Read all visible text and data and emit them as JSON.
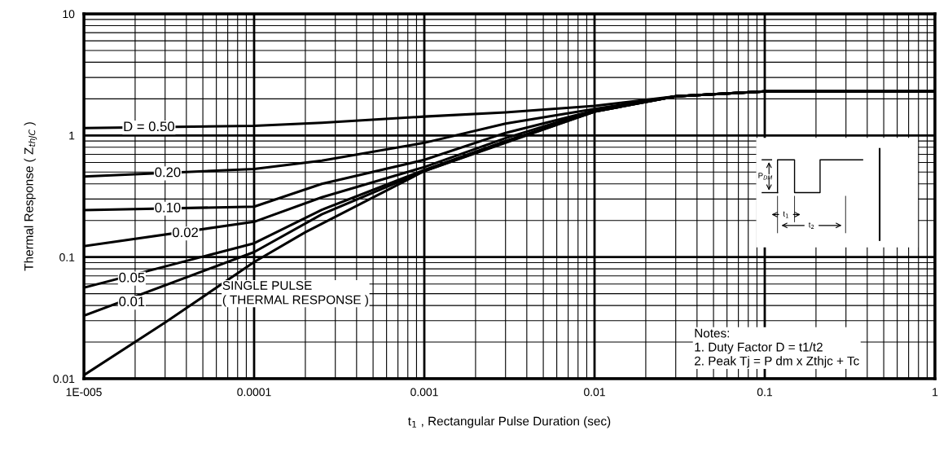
{
  "chart_data": {
    "type": "line",
    "xlabel": "t$_{1}$ , Rectangular Pulse Duration (sec)",
    "ylabel": "Thermal Response ( Z$_{thJC}$ )",
    "log": "xy",
    "grid": true,
    "legend": false,
    "marker": "none",
    "line_style": "solid",
    "xlim": [
      1e-05,
      1
    ],
    "ylim": [
      0.01,
      10
    ],
    "xticks": [
      {
        "value": 1e-05,
        "label": "1E-005"
      },
      0.0001,
      0.001,
      0.01,
      0.1,
      1
    ],
    "yticks": [
      0.01,
      0.1,
      1,
      10
    ],
    "x": [
      1e-05,
      0.0001,
      0.00025,
      0.001,
      0.003,
      0.01,
      0.03,
      0.1,
      1
    ],
    "series": [
      {
        "name": "D = 0.50",
        "color": "#000000",
        "values": [
          1.15,
          1.2,
          1.27,
          1.43,
          1.55,
          1.75,
          2.1,
          2.3,
          2.3
        ]
      },
      {
        "name": "0.20",
        "color": "#000000",
        "values": [
          0.46,
          0.53,
          0.62,
          0.87,
          1.25,
          1.65,
          2.1,
          2.3,
          2.3
        ]
      },
      {
        "name": "0.10",
        "color": "#000000",
        "values": [
          0.243,
          0.26,
          0.4,
          0.63,
          1.05,
          1.6,
          2.1,
          2.3,
          2.3
        ]
      },
      {
        "name": "0.02",
        "color": "#000000",
        "values": [
          0.123,
          0.195,
          0.31,
          0.55,
          0.95,
          1.6,
          2.1,
          2.3,
          2.3
        ]
      },
      {
        "name": "0.05",
        "color": "#000000",
        "values": [
          0.056,
          0.13,
          0.245,
          0.52,
          0.9,
          1.57,
          2.1,
          2.3,
          2.3
        ]
      },
      {
        "name": "0.01",
        "color": "#000000",
        "values": [
          0.033,
          0.11,
          0.225,
          0.51,
          0.88,
          1.57,
          2.1,
          2.3,
          2.3
        ]
      },
      {
        "name": "SINGLE PULSE\n( THERMAL RESPONSE )",
        "color": "#000000",
        "x": [
          1e-05,
          3e-05,
          0.0001,
          0.0002,
          0.001,
          0.003,
          0.01,
          0.03,
          0.1,
          1
        ],
        "values": [
          0.0107,
          0.029,
          0.091,
          0.16,
          0.51,
          0.87,
          1.57,
          2.1,
          2.3,
          2.3
        ]
      }
    ],
    "annotations": [
      "Notes:\n1. Duty Factor D = t1/t2\n2. Peak Tj = P dm x Zthjc + Tc",
      "P$_{DM}$",
      "t$_{1}$",
      "t$_{2}$"
    ]
  }
}
